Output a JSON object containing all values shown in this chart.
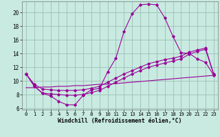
{
  "background_color": "#c8eae0",
  "grid_color": "#9bbfb5",
  "line_color": "#990099",
  "xlim": [
    -0.5,
    23.5
  ],
  "ylim": [
    5.8,
    21.6
  ],
  "yticks": [
    6,
    8,
    10,
    12,
    14,
    16,
    18,
    20
  ],
  "xticks": [
    0,
    1,
    2,
    3,
    4,
    5,
    6,
    7,
    8,
    9,
    10,
    11,
    12,
    13,
    14,
    15,
    16,
    17,
    18,
    19,
    20,
    21,
    22,
    23
  ],
  "xlabel": "Windchill (Refroidissement éolien,°C)",
  "curve_main_x": [
    0,
    1,
    2,
    3,
    4,
    5,
    6,
    7,
    8,
    9,
    10,
    11,
    12,
    13,
    14,
    15,
    16,
    17,
    18,
    19,
    20,
    21,
    22,
    23
  ],
  "curve_main_y": [
    11.0,
    9.3,
    8.2,
    7.8,
    7.0,
    6.5,
    6.5,
    7.9,
    8.7,
    8.9,
    11.3,
    13.3,
    17.2,
    19.8,
    21.1,
    21.2,
    21.1,
    19.2,
    16.5,
    14.1,
    14.0,
    13.2,
    12.7,
    10.8
  ],
  "curve_upper_x": [
    0,
    1,
    2,
    3,
    4,
    5,
    6,
    7,
    8,
    9,
    10,
    11,
    12,
    13,
    14,
    15,
    16,
    17,
    18,
    19,
    20,
    21,
    22,
    23
  ],
  "curve_upper_y": [
    11.0,
    9.5,
    8.8,
    8.7,
    8.6,
    8.6,
    8.6,
    8.7,
    8.9,
    9.2,
    9.8,
    10.4,
    11.0,
    11.5,
    12.0,
    12.5,
    12.8,
    13.1,
    13.3,
    13.6,
    14.2,
    14.5,
    14.8,
    11.0
  ],
  "curve_mid_x": [
    0,
    1,
    2,
    3,
    4,
    5,
    6,
    7,
    8,
    9,
    10,
    11,
    12,
    13,
    14,
    15,
    16,
    17,
    18,
    19,
    20,
    21,
    22,
    23
  ],
  "curve_mid_y": [
    11.0,
    9.2,
    8.2,
    8.1,
    8.0,
    7.9,
    7.9,
    8.0,
    8.3,
    8.6,
    9.2,
    9.8,
    10.4,
    11.0,
    11.5,
    12.0,
    12.3,
    12.6,
    12.9,
    13.2,
    13.9,
    14.3,
    14.6,
    10.9
  ],
  "curve_low_x": [
    0,
    1,
    2,
    3,
    4,
    5,
    6,
    7,
    8,
    9,
    10,
    11,
    12,
    13,
    14,
    15,
    16,
    17,
    18,
    19,
    20,
    21,
    22,
    23
  ],
  "curve_low_y": [
    9.0,
    9.0,
    9.1,
    9.1,
    9.2,
    9.2,
    9.3,
    9.3,
    9.4,
    9.5,
    9.5,
    9.6,
    9.7,
    9.8,
    9.9,
    10.0,
    10.1,
    10.2,
    10.3,
    10.4,
    10.5,
    10.6,
    10.7,
    10.8
  ]
}
